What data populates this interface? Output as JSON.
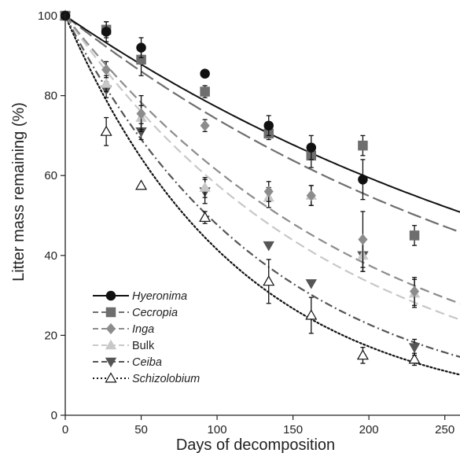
{
  "chart_data": {
    "type": "scatter",
    "title": "",
    "xlabel": "Days of decomposition",
    "ylabel": "Litter mass remaining (%)",
    "xlim": [
      0,
      260
    ],
    "ylim": [
      0,
      100
    ],
    "x_ticks": [
      0,
      50,
      100,
      150,
      200,
      250
    ],
    "y_ticks": [
      0,
      20,
      40,
      60,
      80,
      100
    ],
    "grid": false,
    "legend_position": "bottom-left",
    "series": [
      {
        "name": "Hyeronima",
        "italic": true,
        "marker": "circle",
        "color": "#111111",
        "line_dash": "solid",
        "fit_k": 0.0026,
        "x": [
          0,
          27,
          50,
          92,
          134,
          162,
          196
        ],
        "y": [
          100,
          96,
          92,
          85.5,
          72.5,
          67,
          59
        ],
        "err": [
          0,
          2.5,
          2.5,
          0,
          2.5,
          3,
          5
        ]
      },
      {
        "name": "Cecropia",
        "italic": true,
        "marker": "square",
        "color": "#6e6e6e",
        "line_dash": "long-dash",
        "fit_k": 0.003,
        "x": [
          0,
          27,
          50,
          92,
          134,
          162,
          196,
          230
        ],
        "y": [
          100,
          96.5,
          89,
          81,
          70.5,
          65,
          67.5,
          45
        ],
        "err": [
          0,
          2,
          4,
          1.5,
          1.5,
          3,
          2.5,
          2.5
        ]
      },
      {
        "name": "Inga",
        "italic": true,
        "marker": "diamond",
        "color": "#8c8c8c",
        "line_dash": "dash",
        "fit_k": 0.0049,
        "x": [
          0,
          27,
          50,
          92,
          134,
          162,
          196,
          230
        ],
        "y": [
          100,
          86.5,
          75.5,
          72.5,
          56,
          55,
          44,
          31
        ],
        "err": [
          0,
          2,
          4.5,
          1.5,
          2.5,
          2.5,
          7,
          3.5
        ]
      },
      {
        "name": "Bulk",
        "italic": false,
        "marker": "triangle-up",
        "color": "#c8c8c8",
        "line_dash": "dash",
        "fit_k": 0.0055,
        "x": [
          0,
          27,
          50,
          92,
          134,
          162,
          196,
          230
        ],
        "y": [
          100,
          83,
          74.5,
          57,
          54.5,
          55,
          40,
          30.5
        ],
        "err": [
          0,
          2,
          3,
          2.5,
          2.5,
          2.5,
          4,
          3.5
        ]
      },
      {
        "name": "Ceiba",
        "italic": true,
        "marker": "triangle-down",
        "color": "#555555",
        "line_dash": "dot-dash",
        "fit_k": 0.0074,
        "x": [
          0,
          27,
          50,
          92,
          134,
          162,
          196,
          230
        ],
        "y": [
          100,
          81.5,
          71,
          56,
          42.5,
          33,
          40,
          17
        ],
        "err": [
          0,
          2,
          2,
          3,
          0,
          0,
          4,
          2
        ]
      },
      {
        "name": "Schizolobium",
        "italic": true,
        "marker": "triangle-open",
        "color": "#111111",
        "line_dash": "dot",
        "fit_k": 0.0088,
        "x": [
          0,
          27,
          50,
          92,
          134,
          162,
          196,
          230
        ],
        "y": [
          100,
          71,
          57.5,
          49.5,
          33.5,
          25,
          15,
          14
        ],
        "err": [
          0,
          3.5,
          0,
          1.5,
          5.5,
          4.5,
          2,
          1.5
        ]
      }
    ]
  }
}
